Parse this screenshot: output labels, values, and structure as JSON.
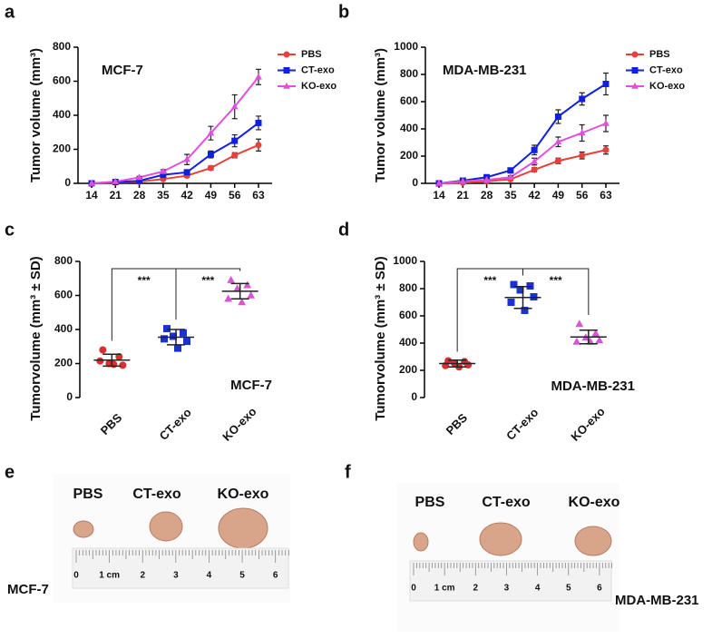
{
  "chart_data": [
    {
      "type": "line",
      "panel": "a",
      "title": "MCF-7",
      "y_label": "Tumor volume (mm³)",
      "x": [
        14,
        21,
        28,
        35,
        42,
        49,
        56,
        63
      ],
      "xlim": [
        10,
        67
      ],
      "xticks": [
        14,
        21,
        28,
        35,
        42,
        49,
        56,
        63
      ],
      "ylim": [
        0,
        800
      ],
      "yticks": [
        0,
        200,
        400,
        600,
        800
      ],
      "legend": "right",
      "series": [
        {
          "name": "PBS",
          "color": "#e8403a",
          "marker": "circle",
          "values": [
            0,
            5,
            10,
            25,
            45,
            90,
            165,
            225
          ],
          "errors": [
            0,
            3,
            5,
            8,
            10,
            12,
            15,
            35
          ]
        },
        {
          "name": "CT-exo",
          "color": "#1020e0",
          "marker": "square",
          "values": [
            0,
            8,
            15,
            50,
            65,
            170,
            250,
            355
          ],
          "errors": [
            0,
            3,
            5,
            8,
            12,
            20,
            35,
            40
          ]
        },
        {
          "name": "KO-exo",
          "color": "#e24fe0",
          "marker": "triangle",
          "values": [
            0,
            10,
            35,
            70,
            140,
            295,
            450,
            625
          ],
          "errors": [
            0,
            3,
            6,
            10,
            30,
            40,
            70,
            45
          ]
        }
      ]
    },
    {
      "type": "line",
      "panel": "b",
      "title": "MDA-MB-231",
      "y_label": "Tumor volume (mm³)",
      "x": [
        14,
        21,
        28,
        35,
        42,
        49,
        56,
        63
      ],
      "xlim": [
        10,
        67
      ],
      "xticks": [
        14,
        21,
        28,
        35,
        42,
        49,
        56,
        63
      ],
      "ylim": [
        0,
        1000
      ],
      "yticks": [
        0,
        200,
        400,
        600,
        800,
        1000
      ],
      "legend": "right",
      "series": [
        {
          "name": "PBS",
          "color": "#e8403a",
          "marker": "circle",
          "values": [
            0,
            5,
            15,
            30,
            100,
            165,
            205,
            245
          ],
          "errors": [
            0,
            3,
            5,
            8,
            15,
            20,
            25,
            30
          ]
        },
        {
          "name": "CT-exo",
          "color": "#1020e0",
          "marker": "square",
          "values": [
            0,
            20,
            45,
            95,
            245,
            490,
            620,
            730
          ],
          "errors": [
            0,
            5,
            8,
            15,
            35,
            50,
            45,
            80
          ]
        },
        {
          "name": "KO-exo",
          "color": "#e24fe0",
          "marker": "triangle",
          "values": [
            0,
            15,
            25,
            45,
            160,
            305,
            370,
            440
          ],
          "errors": [
            0,
            5,
            8,
            10,
            25,
            35,
            60,
            60
          ]
        }
      ]
    },
    {
      "type": "dot",
      "panel": "c",
      "title": "MCF-7",
      "y_label": "Tumorvolume (mm³ ± SD)",
      "categories": [
        "PBS",
        "CT-exo",
        "KO-exo"
      ],
      "colors": [
        "#d83030",
        "#1a33d0",
        "#d855d8"
      ],
      "markers": [
        "circle",
        "square",
        "triangle"
      ],
      "points": [
        [
          280,
          240,
          200,
          190,
          215,
          195
        ],
        [
          405,
          380,
          360,
          330,
          345,
          290
        ],
        [
          690,
          660,
          640,
          600,
          580,
          560
        ]
      ],
      "means": [
        220,
        355,
        625
      ],
      "sds": [
        35,
        45,
        45
      ],
      "ylim": [
        0,
        800
      ],
      "yticks": [
        0,
        200,
        400,
        600,
        800
      ],
      "annotations": [
        "***",
        "***"
      ]
    },
    {
      "type": "dot",
      "panel": "d",
      "title": "MDA-MB-231",
      "y_label": "Tumorvolume (mm³ ± SD)",
      "categories": [
        "PBS",
        "CT-exo",
        "KO-exo"
      ],
      "colors": [
        "#d83030",
        "#1a33d0",
        "#d855d8"
      ],
      "markers": [
        "circle",
        "square",
        "triangle"
      ],
      "points": [
        [
          270,
          265,
          250,
          240,
          235,
          225
        ],
        [
          830,
          820,
          790,
          740,
          700,
          640
        ],
        [
          540,
          470,
          440,
          420,
          410,
          410
        ]
      ],
      "means": [
        250,
        735,
        445
      ],
      "sds": [
        25,
        80,
        50
      ],
      "ylim": [
        0,
        1000
      ],
      "yticks": [
        0,
        200,
        400,
        600,
        800,
        1000
      ],
      "annotations": [
        "***",
        "***"
      ]
    }
  ],
  "photos": [
    {
      "panel": "e",
      "labels": [
        "PBS",
        "CT-exo",
        "KO-exo"
      ],
      "cell_line": "MCF-7",
      "ruler": [
        "0",
        "1 cm",
        "2",
        "3",
        "4",
        "5",
        "6"
      ]
    },
    {
      "panel": "f",
      "labels": [
        "PBS",
        "CT-exo",
        "KO-exo"
      ],
      "cell_line": "MDA-MB-231",
      "ruler": [
        "0",
        "1 cm",
        "2",
        "3",
        "4",
        "5",
        "6"
      ]
    }
  ]
}
